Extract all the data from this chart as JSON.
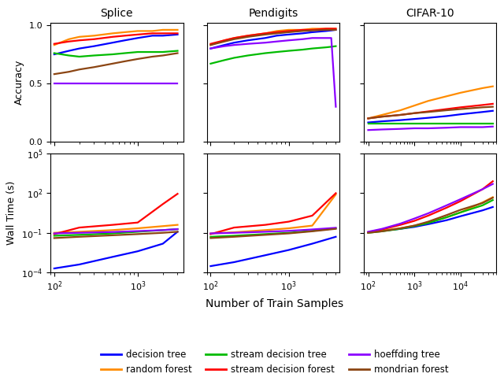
{
  "colors": {
    "decision_tree": "#0000FF",
    "random_forest": "#FF8C00",
    "stream_decision_tree": "#00BB00",
    "stream_decision_forest": "#FF0000",
    "hoeffding_tree": "#8B00FF",
    "mondrian_forest": "#8B4513"
  },
  "legend_labels": {
    "decision_tree": "decision tree",
    "random_forest": "random forest",
    "stream_decision_tree": "stream decision tree",
    "stream_decision_forest": "stream decision forest",
    "hoeffding_tree": "hoeffding tree",
    "mondrian_forest": "mondrian forest"
  },
  "col_titles": [
    "Splice",
    "Pendigits",
    "CIFAR-10"
  ],
  "row_labels": [
    "Accuracy",
    "Wall Time (s)"
  ],
  "xlabel": "Number of Train Samples",
  "splice_acc": {
    "x": [
      100,
      150,
      200,
      300,
      500,
      700,
      1000,
      1500,
      2000,
      3000
    ],
    "decision_tree": [
      0.75,
      0.78,
      0.8,
      0.82,
      0.85,
      0.87,
      0.89,
      0.91,
      0.91,
      0.92
    ],
    "random_forest": [
      0.83,
      0.88,
      0.9,
      0.91,
      0.93,
      0.94,
      0.95,
      0.95,
      0.96,
      0.96
    ],
    "stream_decision_tree": [
      0.76,
      0.74,
      0.73,
      0.74,
      0.75,
      0.76,
      0.77,
      0.77,
      0.77,
      0.78
    ],
    "stream_decision_forest": [
      0.84,
      0.86,
      0.87,
      0.88,
      0.9,
      0.91,
      0.92,
      0.93,
      0.93,
      0.93
    ],
    "hoeffding_tree": [
      0.5,
      0.5,
      0.5,
      0.5,
      0.5,
      0.5,
      0.5,
      0.5,
      0.5,
      0.5
    ],
    "mondrian_forest": [
      0.58,
      0.6,
      0.62,
      0.64,
      0.67,
      0.69,
      0.71,
      0.73,
      0.74,
      0.76
    ]
  },
  "pendigits_acc": {
    "x": [
      100,
      150,
      200,
      300,
      500,
      700,
      1000,
      1500,
      2000,
      3000,
      3500,
      4000
    ],
    "decision_tree": [
      0.8,
      0.83,
      0.85,
      0.87,
      0.89,
      0.91,
      0.92,
      0.93,
      0.94,
      0.95,
      0.955,
      0.96
    ],
    "random_forest": [
      0.83,
      0.87,
      0.89,
      0.91,
      0.93,
      0.95,
      0.96,
      0.96,
      0.97,
      0.97,
      0.97,
      0.97
    ],
    "stream_decision_tree": [
      0.67,
      0.7,
      0.72,
      0.74,
      0.76,
      0.77,
      0.78,
      0.79,
      0.8,
      0.81,
      0.815,
      0.82
    ],
    "stream_decision_forest": [
      0.84,
      0.87,
      0.89,
      0.91,
      0.93,
      0.94,
      0.95,
      0.96,
      0.96,
      0.97,
      0.97,
      0.97
    ],
    "hoeffding_tree": [
      0.8,
      0.82,
      0.83,
      0.84,
      0.85,
      0.86,
      0.87,
      0.88,
      0.89,
      0.89,
      0.89,
      0.3
    ],
    "mondrian_forest": [
      0.83,
      0.86,
      0.88,
      0.9,
      0.92,
      0.93,
      0.94,
      0.95,
      0.955,
      0.96,
      0.96,
      0.96
    ]
  },
  "cifar_acc": {
    "x": [
      100,
      200,
      500,
      1000,
      2000,
      5000,
      10000,
      30000,
      50000
    ],
    "decision_tree": [
      0.165,
      0.175,
      0.185,
      0.195,
      0.205,
      0.22,
      0.235,
      0.255,
      0.265
    ],
    "random_forest": [
      0.2,
      0.23,
      0.27,
      0.31,
      0.35,
      0.39,
      0.42,
      0.46,
      0.475
    ],
    "stream_decision_tree": [
      0.155,
      0.155,
      0.155,
      0.155,
      0.155,
      0.155,
      0.155,
      0.155,
      0.155
    ],
    "stream_decision_forest": [
      0.2,
      0.215,
      0.23,
      0.245,
      0.26,
      0.28,
      0.295,
      0.315,
      0.325
    ],
    "hoeffding_tree": [
      0.1,
      0.105,
      0.11,
      0.115,
      0.115,
      0.12,
      0.125,
      0.125,
      0.13
    ],
    "mondrian_forest": [
      0.2,
      0.215,
      0.23,
      0.245,
      0.255,
      0.27,
      0.28,
      0.295,
      0.3
    ]
  },
  "splice_time": {
    "x": [
      100,
      200,
      500,
      1000,
      2000,
      3000
    ],
    "decision_tree": [
      0.0002,
      0.0004,
      0.0015,
      0.004,
      0.015,
      0.12
    ],
    "random_forest": [
      0.1,
      0.12,
      0.16,
      0.22,
      0.32,
      0.4
    ],
    "stream_decision_tree": [
      0.06,
      0.07,
      0.09,
      0.12,
      0.16,
      0.19
    ],
    "stream_decision_forest": [
      0.08,
      0.25,
      0.4,
      0.6,
      15.0,
      90.0
    ],
    "hoeffding_tree": [
      0.09,
      0.1,
      0.115,
      0.135,
      0.16,
      0.19
    ],
    "mondrian_forest": [
      0.04,
      0.05,
      0.065,
      0.08,
      0.1,
      0.12
    ]
  },
  "pendigits_time": {
    "x": [
      100,
      200,
      500,
      1000,
      2000,
      4000
    ],
    "decision_tree": [
      0.0003,
      0.0006,
      0.002,
      0.005,
      0.015,
      0.05
    ],
    "random_forest": [
      0.09,
      0.11,
      0.16,
      0.22,
      0.35,
      80.0
    ],
    "stream_decision_tree": [
      0.05,
      0.06,
      0.08,
      0.1,
      0.14,
      0.22
    ],
    "stream_decision_forest": [
      0.08,
      0.25,
      0.4,
      0.7,
      2.0,
      100.0
    ],
    "hoeffding_tree": [
      0.09,
      0.1,
      0.12,
      0.14,
      0.18,
      0.24
    ],
    "mondrian_forest": [
      0.04,
      0.05,
      0.07,
      0.09,
      0.13,
      0.2
    ]
  },
  "cifar_time": {
    "x": [
      100,
      200,
      500,
      1000,
      2000,
      5000,
      10000,
      30000,
      50000
    ],
    "decision_tree": [
      0.11,
      0.14,
      0.2,
      0.28,
      0.45,
      0.9,
      1.8,
      5.0,
      9.0
    ],
    "random_forest": [
      0.11,
      0.15,
      0.22,
      0.35,
      0.6,
      1.5,
      3.5,
      20.0,
      50.0
    ],
    "stream_decision_tree": [
      0.1,
      0.13,
      0.2,
      0.32,
      0.55,
      1.5,
      3.5,
      12.0,
      30.0
    ],
    "stream_decision_forest": [
      0.11,
      0.18,
      0.4,
      0.8,
      2.0,
      8.0,
      25.0,
      200.0,
      800.0
    ],
    "hoeffding_tree": [
      0.12,
      0.2,
      0.5,
      1.2,
      3.0,
      12.0,
      35.0,
      200.0,
      500.0
    ],
    "mondrian_forest": [
      0.1,
      0.13,
      0.22,
      0.35,
      0.7,
      2.2,
      5.5,
      18.0,
      45.0
    ]
  }
}
